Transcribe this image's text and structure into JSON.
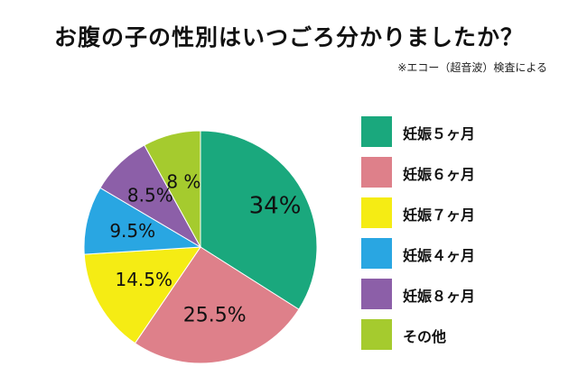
{
  "title": "お腹の子の性別はいつごろ分かりましたか？",
  "note": "※エコー（超音波）検査による",
  "chart_data": {
    "type": "pie",
    "title": "お腹の子の性別はいつごろ分かりましたか？",
    "categories": [
      "妊娠５ヶ月",
      "妊娠６ヶ月",
      "妊娠７ヶ月",
      "妊娠４ヶ月",
      "妊娠８ヶ月",
      "その他"
    ],
    "values": [
      34,
      25.5,
      14.5,
      9.5,
      8.5,
      8
    ],
    "data_labels": [
      "34%",
      "25.5%",
      "14.5%",
      "9.5%",
      "8.5%",
      "8 %"
    ],
    "colors": [
      "#1aa87d",
      "#de808a",
      "#f5ec14",
      "#29a6e2",
      "#8c5fa8",
      "#a5cb2e"
    ],
    "start_angle": "12 o'clock",
    "direction": "clockwise",
    "legend": "right"
  }
}
